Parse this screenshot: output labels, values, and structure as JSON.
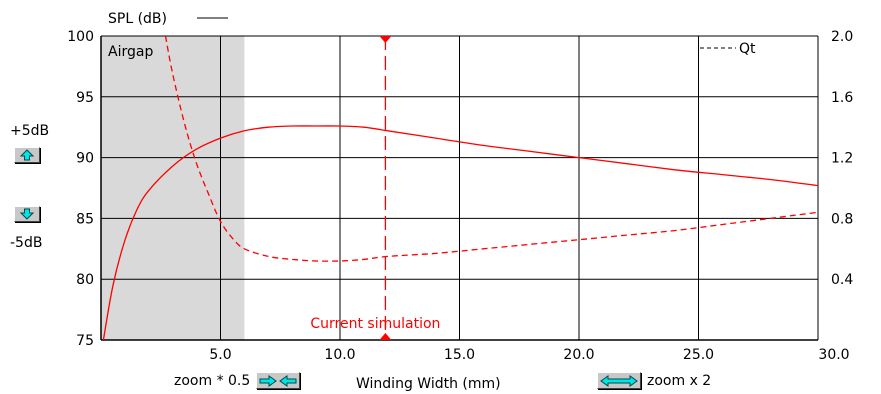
{
  "chart_data": {
    "type": "line",
    "xlabel": "Winding Width (mm)",
    "ylabel_left": "SPL (dB)",
    "ylabel_right": "Qt",
    "xlim": [
      0,
      30
    ],
    "ylim_left": [
      75,
      100
    ],
    "ylim_right": [
      0,
      2.0
    ],
    "x_ticks": [
      "5.0",
      "10.0",
      "15.0",
      "20.0",
      "25.0",
      "30.0"
    ],
    "y_ticks_left": [
      "75",
      "80",
      "85",
      "90",
      "95",
      "100"
    ],
    "y_ticks_right": [
      "0.4",
      "0.8",
      "1.2",
      "1.6",
      "2.0"
    ],
    "grid": true,
    "region": {
      "label": "Airgap",
      "x_end": 6.0
    },
    "marker": {
      "label": "Current simulation",
      "x": 11.9
    },
    "series": [
      {
        "name": "SPL (dB)",
        "axis": "left",
        "style": "solid",
        "color": "#ff0000",
        "x": [
          0.1,
          0.5,
          1,
          1.5,
          2,
          3,
          4,
          5,
          6,
          7,
          8,
          9,
          10,
          11,
          12,
          14,
          16,
          18,
          20,
          22,
          24,
          26,
          28,
          30
        ],
        "y": [
          75,
          79.5,
          83.2,
          85.7,
          87.3,
          89.3,
          90.7,
          91.6,
          92.2,
          92.5,
          92.6,
          92.6,
          92.6,
          92.5,
          92.2,
          91.6,
          91.0,
          90.5,
          90.0,
          89.5,
          89.0,
          88.6,
          88.2,
          87.7
        ]
      },
      {
        "name": "Qt",
        "axis": "right",
        "style": "dashed",
        "color": "#ff0000",
        "x": [
          2.7,
          3,
          3.5,
          4,
          4.5,
          5,
          5.5,
          6,
          7,
          8,
          9,
          10,
          11,
          12,
          14,
          16,
          18,
          20,
          22,
          24,
          26,
          28,
          30
        ],
        "y": [
          2.0,
          1.75,
          1.42,
          1.16,
          0.96,
          0.78,
          0.67,
          0.6,
          0.55,
          0.53,
          0.52,
          0.52,
          0.53,
          0.55,
          0.57,
          0.6,
          0.63,
          0.66,
          0.69,
          0.72,
          0.76,
          0.8,
          0.84
        ]
      }
    ]
  },
  "controls": {
    "plus_label": "+5dB",
    "minus_label": "-5dB",
    "zoom_out_label": "zoom * 0.5",
    "zoom_in_label": "zoom x 2"
  },
  "icons": {
    "plus": "arrow-up-icon",
    "minus": "arrow-down-icon",
    "zoom_out": "arrows-inward-icon",
    "zoom_in": "arrows-outward-icon"
  },
  "colors": {
    "plot_line": "#ff0000",
    "airgap_fill": "#d9d9d9",
    "button_icon": "#00e5e5"
  }
}
